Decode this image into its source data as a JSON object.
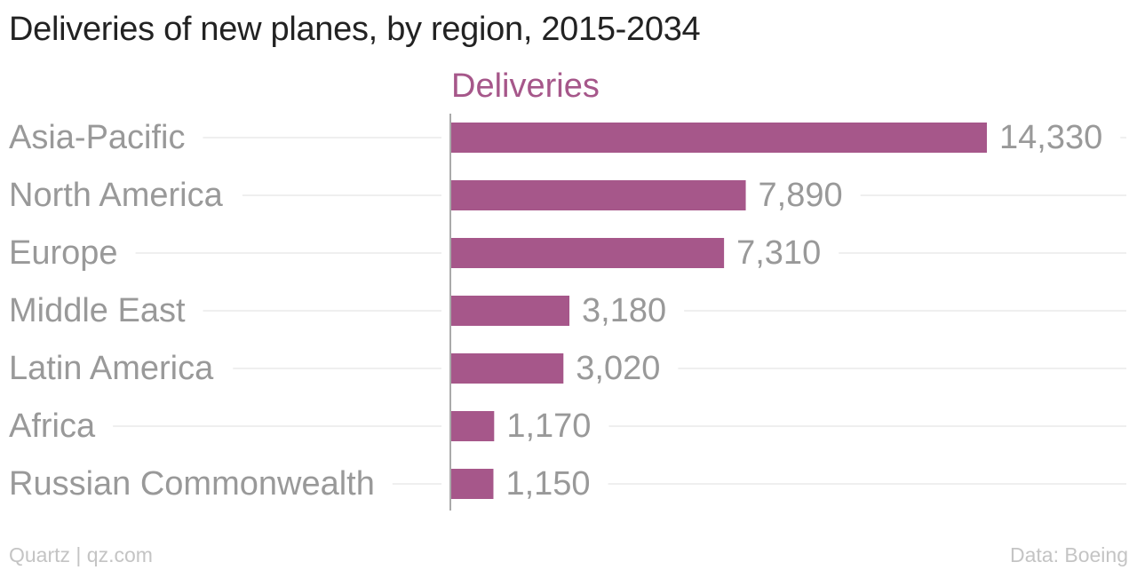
{
  "title": "Deliveries of new planes, by region, 2015-2034",
  "footer": {
    "credit": "Quartz | qz.com",
    "source": "Data: Boeing"
  },
  "colors": {
    "bar": "#a6578a",
    "category_text": "#999999",
    "value_text": "#999999",
    "gridline": "#eaeaea",
    "axis": "#aaaaaa"
  },
  "chart_data": {
    "type": "bar",
    "orientation": "horizontal",
    "categories": [
      "Asia-Pacific",
      "North America",
      "Europe",
      "Middle East",
      "Latin America",
      "Africa",
      "Russian Commonwealth"
    ],
    "series": [
      {
        "name": "Deliveries",
        "values": [
          14330,
          7890,
          7310,
          3180,
          3020,
          1170,
          1150
        ]
      }
    ],
    "value_labels": [
      "14,330",
      "7,890",
      "7,310",
      "3,180",
      "3,020",
      "1,170",
      "1,150"
    ],
    "xlim": [
      0,
      14330
    ],
    "grid": true
  }
}
